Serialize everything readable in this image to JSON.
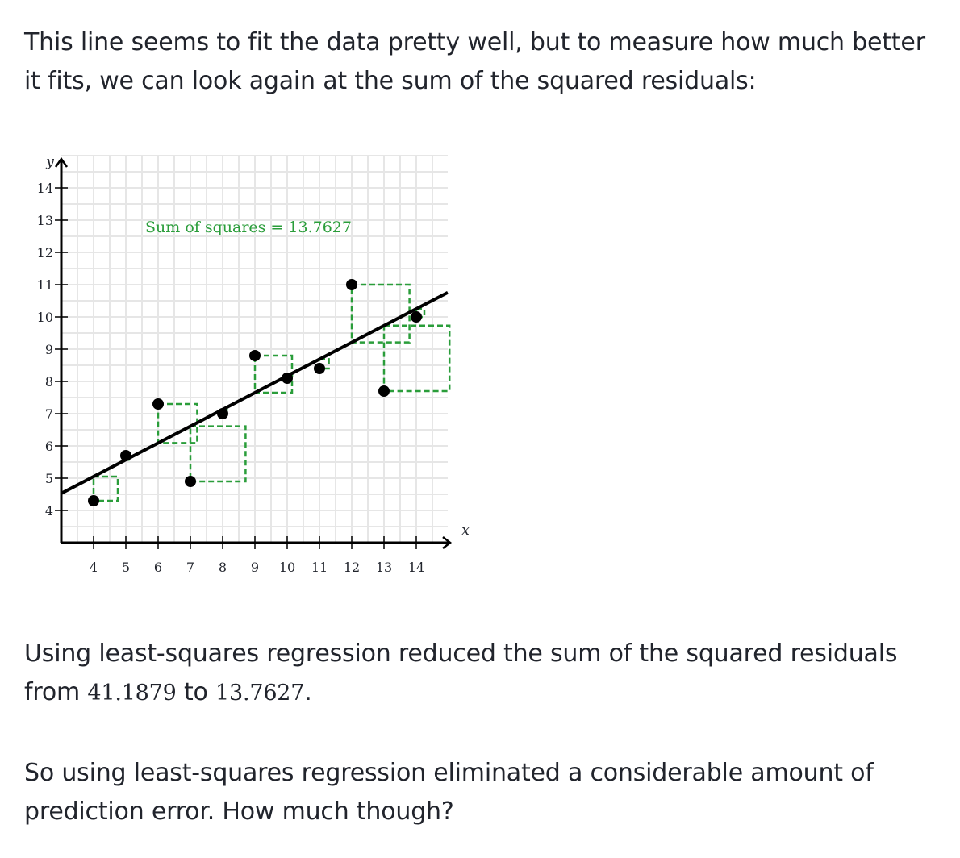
{
  "text": {
    "p1": "This line seems to fit the data pretty well, but to measure how much better it fits, we can look again at the sum of the squared residuals:",
    "p2_before": "Using least-squares regression reduced the sum of the squared residuals from ",
    "p2_from": "41.1879",
    "p2_mid": " to ",
    "p2_to": "13.7627",
    "p2_after": ".",
    "p3": "So using least-squares regression eliminated a considerable amount of prediction error. How much though?"
  },
  "colors": {
    "residual_square": "#2a9d3a",
    "points": "#000000",
    "line": "#000000",
    "grid": "#e6e6e6"
  },
  "chart_data": {
    "type": "scatter",
    "xlabel": "x",
    "ylabel": "y",
    "xlim": [
      3,
      15
    ],
    "ylim": [
      3,
      14.4
    ],
    "grid": true,
    "x_ticks": [
      4,
      5,
      6,
      7,
      8,
      9,
      10,
      11,
      12,
      13,
      14
    ],
    "y_ticks": [
      4,
      5,
      6,
      7,
      8,
      9,
      10,
      11,
      12,
      13,
      14
    ],
    "annotation": "Sum of squares = 13.7627",
    "regression_line": {
      "slope": 0.52,
      "intercept": 2.97
    },
    "points": [
      {
        "x": 4,
        "y": 4.3
      },
      {
        "x": 5,
        "y": 5.7
      },
      {
        "x": 6,
        "y": 7.3
      },
      {
        "x": 7,
        "y": 4.9
      },
      {
        "x": 8,
        "y": 7.0
      },
      {
        "x": 9,
        "y": 8.8
      },
      {
        "x": 10,
        "y": 8.1
      },
      {
        "x": 11,
        "y": 8.4
      },
      {
        "x": 12,
        "y": 11.0
      },
      {
        "x": 13,
        "y": 7.7
      },
      {
        "x": 14,
        "y": 10.0
      }
    ]
  }
}
